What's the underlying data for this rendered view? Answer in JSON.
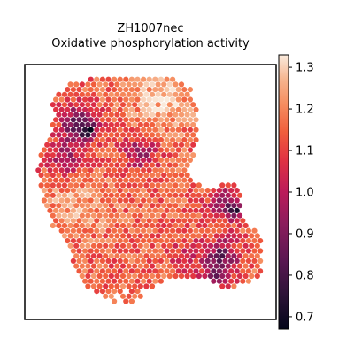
{
  "chart_data": {
    "type": "scatter",
    "title_lines": [
      "ZH1007nec",
      "Oxidative phosphorylation activity"
    ],
    "xlabel": "",
    "ylabel": "",
    "grid": false,
    "colormap": "rocket",
    "colorbar": {
      "min": 0.67,
      "max": 1.33,
      "ticks": [
        "0.7",
        "0.8",
        "0.9",
        "1.0",
        "1.1",
        "1.2",
        "1.3"
      ],
      "tick_values": [
        0.7,
        0.8,
        0.9,
        1.0,
        1.1,
        1.2,
        1.3
      ]
    },
    "value_range": [
      0.67,
      1.33
    ],
    "spot_count_estimate": 1500,
    "low_value_regions": [
      "upper-left lobe near the top-left edge (values ~0.7-0.9)",
      "central band left of center (values ~0.9-1.0)",
      "right arm edge around the upper right protrusion (values ~0.7-0.9)",
      "lower right cluster (values ~0.7-0.9)"
    ],
    "high_value_regions": [
      "top center area (values ~1.25-1.32)",
      "left-center interior (values ~1.2-1.3)"
    ]
  }
}
